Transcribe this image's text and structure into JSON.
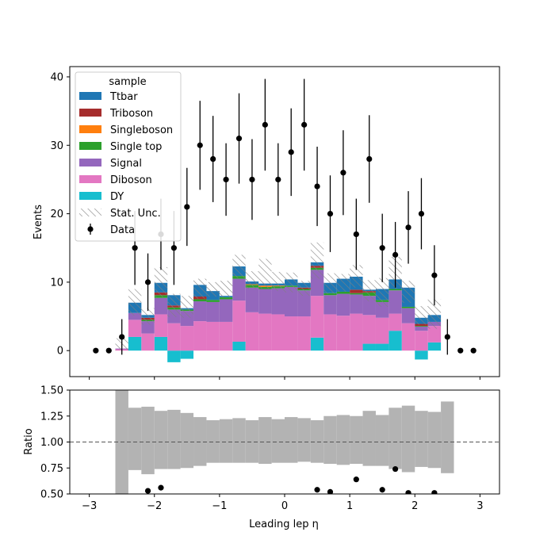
{
  "chart_data": {
    "type": "bar",
    "xlabel": "Leading lep η",
    "ylabel_top": "Events",
    "ylabel_bottom": "Ratio",
    "xlim": [
      -3.3,
      3.3
    ],
    "xticks": [
      "−3",
      "−2",
      "−1",
      "0",
      "1",
      "2",
      "3"
    ],
    "top": {
      "ylim": [
        -3.8,
        41.5
      ],
      "yticks": [
        "0",
        "10",
        "20",
        "30",
        "40"
      ]
    },
    "bottom": {
      "ylim": [
        0.5,
        1.5
      ],
      "yticks": [
        "0.50",
        "0.75",
        "1.00",
        "1.25",
        "1.50"
      ]
    },
    "legend": {
      "title": "sample",
      "location": "top-left",
      "entries": [
        {
          "label": "Ttbar",
          "color": "#1f77b4",
          "kind": "fill"
        },
        {
          "label": "Triboson",
          "color": "#a62d2d",
          "kind": "fill"
        },
        {
          "label": "Singleboson",
          "color": "#ff7f0e",
          "kind": "fill"
        },
        {
          "label": "Single top",
          "color": "#2ca02c",
          "kind": "fill"
        },
        {
          "label": "Signal",
          "color": "#9467bd",
          "kind": "fill"
        },
        {
          "label": "Diboson",
          "color": "#e377c2",
          "kind": "fill"
        },
        {
          "label": "DY",
          "color": "#17becf",
          "kind": "fill"
        },
        {
          "label": "Stat. Unc.",
          "color": "#808080",
          "kind": "hatch"
        },
        {
          "label": "Data",
          "color": "#000000",
          "kind": "errorbar"
        }
      ]
    },
    "bin_edges": [
      -2.6,
      -2.4,
      -2.2,
      -2.0,
      -1.8,
      -1.6,
      -1.4,
      -1.2,
      -1.0,
      -0.8,
      -0.6,
      -0.4,
      -0.2,
      0.0,
      0.2,
      0.4,
      0.6,
      0.8,
      1.0,
      1.2,
      1.4,
      1.6,
      1.8,
      2.0,
      2.2,
      2.4
    ],
    "stack": [
      {
        "name": "DY",
        "color": "#17becf",
        "values": [
          0,
          2.0,
          0,
          2.0,
          -1.7,
          -1.2,
          0,
          0,
          0,
          1.3,
          0,
          0,
          0,
          0,
          0,
          1.9,
          0,
          0,
          0,
          1.0,
          1.0,
          2.9,
          0,
          -1.3,
          1.2
        ]
      },
      {
        "name": "Diboson",
        "color": "#e377c2",
        "values": [
          0.2,
          2.5,
          2.5,
          3.3,
          4.0,
          3.6,
          4.3,
          4.2,
          4.2,
          6.0,
          5.6,
          5.4,
          5.3,
          5.0,
          5.0,
          6.1,
          5.3,
          5.1,
          5.4,
          4.2,
          3.8,
          2.5,
          4.0,
          2.9,
          2.4
        ]
      },
      {
        "name": "Signal",
        "color": "#9467bd",
        "values": [
          0.1,
          1.0,
          1.8,
          2.4,
          2.0,
          2.2,
          2.9,
          2.9,
          3.3,
          3.2,
          3.6,
          3.6,
          3.8,
          4.3,
          3.8,
          3.8,
          2.8,
          3.2,
          2.8,
          2.8,
          2.3,
          3.4,
          2.2,
          0.6,
          0.6
        ]
      },
      {
        "name": "Single top",
        "color": "#2ca02c",
        "values": [
          0,
          0,
          0.2,
          0.4,
          0.3,
          0.2,
          0.3,
          0.3,
          0.3,
          0.4,
          0.4,
          0.3,
          0.3,
          0.2,
          0.2,
          0.3,
          0.3,
          0.3,
          0.2,
          0.5,
          0.3,
          0.2,
          0.2,
          0.1,
          0
        ]
      },
      {
        "name": "Singleboson",
        "color": "#ff7f0e",
        "values": [
          0,
          0,
          0,
          0,
          0,
          0,
          0,
          0,
          0,
          0,
          0.1,
          0.2,
          0.1,
          0,
          0,
          0,
          0,
          0,
          0,
          0,
          0,
          0,
          0,
          0,
          0
        ]
      },
      {
        "name": "Triboson",
        "color": "#a62d2d",
        "values": [
          0,
          0,
          0.3,
          0.4,
          0.3,
          0,
          0.4,
          0,
          0,
          0,
          0,
          0,
          0,
          0,
          0.2,
          0.3,
          0,
          0,
          0.5,
          0.2,
          0,
          0,
          0,
          0.3,
          0
        ]
      },
      {
        "name": "Ttbar",
        "color": "#1f77b4",
        "values": [
          0,
          1.5,
          0.4,
          1.4,
          1.5,
          0.2,
          1.7,
          1.3,
          0.2,
          1.4,
          0.4,
          0.3,
          0.3,
          0.9,
          0.7,
          0.5,
          1.5,
          1.9,
          1.9,
          0.2,
          1.6,
          1.4,
          2.8,
          0.9,
          1.0
        ]
      }
    ],
    "stat_unc": [
      {
        "bin": 0,
        "up": 1.8,
        "down": 0.0
      },
      {
        "bin": 1,
        "up": 9.0,
        "down": 5.1
      },
      {
        "bin": 2,
        "up": 6.2,
        "down": 3.8
      },
      {
        "bin": 3,
        "up": 12.2,
        "down": 7.8
      },
      {
        "bin": 4,
        "up": 8.3,
        "down": 4.9
      },
      {
        "bin": 5,
        "up": 8.0,
        "down": 4.8
      },
      {
        "bin": 6,
        "up": 10.5,
        "down": 7.6
      },
      {
        "bin": 7,
        "up": 10.0,
        "down": 7.9
      },
      {
        "bin": 8,
        "up": 10.2,
        "down": 7.8
      },
      {
        "bin": 9,
        "up": 14.0,
        "down": 10.6
      },
      {
        "bin": 10,
        "up": 11.6,
        "down": 9.0
      },
      {
        "bin": 11,
        "up": 13.4,
        "down": 9.1
      },
      {
        "bin": 12,
        "up": 11.5,
        "down": 8.7
      },
      {
        "bin": 13,
        "up": 11.4,
        "down": 8.5
      },
      {
        "bin": 14,
        "up": 10.2,
        "down": 8.0
      },
      {
        "bin": 15,
        "up": 15.8,
        "down": 10.5
      },
      {
        "bin": 16,
        "up": 11.3,
        "down": 8.3
      },
      {
        "bin": 17,
        "up": 11.2,
        "down": 8.6
      },
      {
        "bin": 18,
        "up": 12.5,
        "down": 9.2
      },
      {
        "bin": 19,
        "up": 10.3,
        "down": 7.2
      },
      {
        "bin": 20,
        "up": 10.6,
        "down": 6.4
      },
      {
        "bin": 21,
        "up": 13.7,
        "down": 9.0
      },
      {
        "bin": 22,
        "up": 10.2,
        "down": 7.0
      },
      {
        "bin": 23,
        "up": 6.5,
        "down": 3.8
      },
      {
        "bin": 24,
        "up": 7.5,
        "down": 3.2
      }
    ],
    "data_points": [
      {
        "x": -2.9,
        "y": 0,
        "err": 0
      },
      {
        "x": -2.7,
        "y": 0,
        "err": 0
      },
      {
        "x": -2.5,
        "y": 2,
        "err": 2.6
      },
      {
        "x": -2.3,
        "y": 15,
        "err": 5.4
      },
      {
        "x": -2.1,
        "y": 10,
        "err": 4.2
      },
      {
        "x": -1.9,
        "y": 17,
        "err": 5.2
      },
      {
        "x": -1.7,
        "y": 15,
        "err": 5.4
      },
      {
        "x": -1.5,
        "y": 21,
        "err": 5.7
      },
      {
        "x": -1.3,
        "y": 30,
        "err": 6.5
      },
      {
        "x": -1.1,
        "y": 28,
        "err": 6.3
      },
      {
        "x": -0.9,
        "y": 25,
        "err": 5.3
      },
      {
        "x": -0.7,
        "y": 31,
        "err": 6.6
      },
      {
        "x": -0.5,
        "y": 25,
        "err": 5.9
      },
      {
        "x": -0.3,
        "y": 33,
        "err": 6.7
      },
      {
        "x": -0.1,
        "y": 25,
        "err": 5.3
      },
      {
        "x": 0.1,
        "y": 29,
        "err": 6.4
      },
      {
        "x": 0.3,
        "y": 33,
        "err": 6.7
      },
      {
        "x": 0.5,
        "y": 24,
        "err": 5.8
      },
      {
        "x": 0.7,
        "y": 20,
        "err": 5.6
      },
      {
        "x": 0.9,
        "y": 26,
        "err": 6.2
      },
      {
        "x": 1.1,
        "y": 17,
        "err": 5.2
      },
      {
        "x": 1.3,
        "y": 28,
        "err": 6.4
      },
      {
        "x": 1.5,
        "y": 15,
        "err": 5.0
      },
      {
        "x": 1.7,
        "y": 14,
        "err": 4.8
      },
      {
        "x": 1.9,
        "y": 18,
        "err": 5.3
      },
      {
        "x": 2.1,
        "y": 20,
        "err": 5.2
      },
      {
        "x": 2.3,
        "y": 11,
        "err": 4.4
      },
      {
        "x": 2.5,
        "y": 2,
        "err": 2.6
      },
      {
        "x": 2.7,
        "y": 0,
        "err": 0
      },
      {
        "x": 2.9,
        "y": 0,
        "err": 0
      }
    ],
    "ratio_band": [
      {
        "bin": 0,
        "up": 1.5,
        "down": 0.5
      },
      {
        "bin": 1,
        "up": 1.33,
        "down": 0.73
      },
      {
        "bin": 2,
        "up": 1.34,
        "down": 0.69
      },
      {
        "bin": 3,
        "up": 1.3,
        "down": 0.74
      },
      {
        "bin": 4,
        "up": 1.31,
        "down": 0.74
      },
      {
        "bin": 5,
        "up": 1.28,
        "down": 0.75
      },
      {
        "bin": 6,
        "up": 1.24,
        "down": 0.77
      },
      {
        "bin": 7,
        "up": 1.21,
        "down": 0.8
      },
      {
        "bin": 8,
        "up": 1.22,
        "down": 0.8
      },
      {
        "bin": 9,
        "up": 1.23,
        "down": 0.8
      },
      {
        "bin": 10,
        "up": 1.21,
        "down": 0.8
      },
      {
        "bin": 11,
        "up": 1.24,
        "down": 0.79
      },
      {
        "bin": 12,
        "up": 1.22,
        "down": 0.8
      },
      {
        "bin": 13,
        "up": 1.24,
        "down": 0.8
      },
      {
        "bin": 14,
        "up": 1.23,
        "down": 0.81
      },
      {
        "bin": 15,
        "up": 1.21,
        "down": 0.8
      },
      {
        "bin": 16,
        "up": 1.25,
        "down": 0.79
      },
      {
        "bin": 17,
        "up": 1.26,
        "down": 0.78
      },
      {
        "bin": 18,
        "up": 1.25,
        "down": 0.79
      },
      {
        "bin": 19,
        "up": 1.3,
        "down": 0.77
      },
      {
        "bin": 20,
        "up": 1.26,
        "down": 0.77
      },
      {
        "bin": 21,
        "up": 1.33,
        "down": 0.74
      },
      {
        "bin": 22,
        "up": 1.35,
        "down": 0.71
      },
      {
        "bin": 23,
        "up": 1.3,
        "down": 0.76
      },
      {
        "bin": 24,
        "up": 1.29,
        "down": 0.75
      },
      {
        "bin": 25,
        "up": 1.39,
        "down": 0.7
      }
    ],
    "ratio_band_edges": [
      -2.6,
      -2.4,
      -2.2,
      -2.0,
      -1.8,
      -1.6,
      -1.4,
      -1.2,
      -1.0,
      -0.8,
      -0.6,
      -0.4,
      -0.2,
      0.0,
      0.2,
      0.4,
      0.6,
      0.8,
      1.0,
      1.2,
      1.4,
      1.6,
      1.8,
      2.0,
      2.2,
      2.4,
      2.4
    ],
    "ratio_points": [
      {
        "x": -2.1,
        "y": 0.53
      },
      {
        "x": -1.9,
        "y": 0.56
      },
      {
        "x": 0.5,
        "y": 0.54
      },
      {
        "x": 0.7,
        "y": 0.52
      },
      {
        "x": 1.1,
        "y": 0.64
      },
      {
        "x": 1.5,
        "y": 0.54
      },
      {
        "x": 1.7,
        "y": 0.74
      },
      {
        "x": 1.9,
        "y": 0.51
      },
      {
        "x": 2.3,
        "y": 0.51
      }
    ],
    "ratio_reference": 1.0
  }
}
